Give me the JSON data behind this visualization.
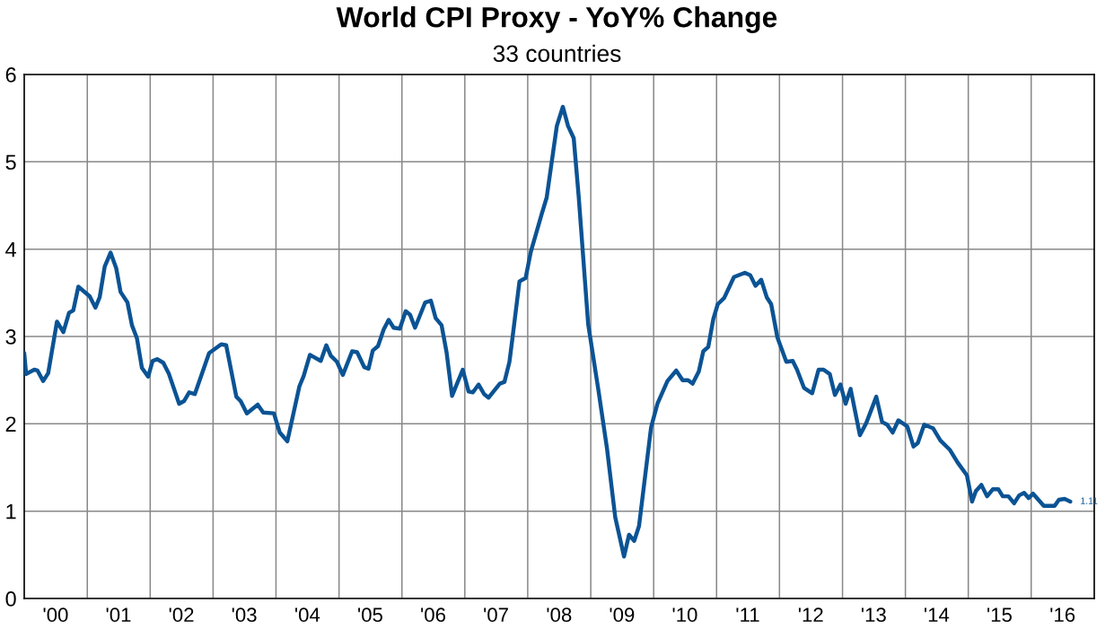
{
  "chart_data": {
    "type": "line",
    "title": "World CPI Proxy - YoY% Change",
    "subtitle": "33 countries",
    "series": [
      {
        "color": "#0b5394",
        "x": [
          "2000-01-01",
          "2000-01-12",
          "2000-02-28",
          "2000-03-18",
          "2000-04-20",
          "2000-05-19",
          "2000-07-09",
          "2000-08-15",
          "2000-09-17",
          "2000-10-12",
          "2000-11-10",
          "2001-01-15",
          "2001-02-17",
          "2001-03-14",
          "2001-04-12",
          "2001-05-16",
          "2001-06-18",
          "2001-07-13",
          "2001-08-22",
          "2001-09-17",
          "2001-10-16",
          "2001-11-14",
          "2001-12-20",
          "2002-01-15",
          "2002-02-10",
          "2002-03-18",
          "2002-04-20",
          "2002-06-18",
          "2002-07-16",
          "2002-08-15",
          "2002-09-17",
          "2002-12-09",
          "2003-02-17",
          "2003-03-18",
          "2003-05-16",
          "2003-06-10",
          "2003-07-16",
          "2003-09-17",
          "2003-10-19",
          "2003-12-20",
          "2004-01-23",
          "2004-03-07",
          "2004-05-16",
          "2004-06-10",
          "2004-07-16",
          "2004-08-03",
          "2004-09-17",
          "2004-10-19",
          "2004-11-14",
          "2004-12-20",
          "2005-01-23",
          "2005-03-18",
          "2005-04-16",
          "2005-05-27",
          "2005-06-21",
          "2005-07-16",
          "2005-08-15",
          "2005-09-17",
          "2005-10-16",
          "2005-11-14",
          "2005-12-20",
          "2006-01-23",
          "2006-02-17",
          "2006-03-18",
          "2006-05-16",
          "2006-06-18",
          "2006-07-16",
          "2006-08-19",
          "2006-09-17",
          "2006-10-19",
          "2006-12-20",
          "2007-01-23",
          "2007-02-17",
          "2007-03-22",
          "2007-04-23",
          "2007-05-19",
          "2007-07-23",
          "2007-08-19",
          "2007-09-17",
          "2007-10-05",
          "2007-11-14",
          "2007-12-20",
          "2008-01-19",
          "2008-03-22",
          "2008-04-20",
          "2008-06-18",
          "2008-07-23",
          "2008-08-22",
          "2008-09-24",
          "2008-10-23",
          "2008-12-17",
          "2009-02-14",
          "2009-04-05",
          "2009-05-23",
          "2009-07-13",
          "2009-08-11",
          "2009-09-10",
          "2009-10-08",
          "2009-12-17",
          "2010-01-23",
          "2010-03-22",
          "2010-05-12",
          "2010-06-18",
          "2010-07-20",
          "2010-08-15",
          "2010-09-20",
          "2010-10-16",
          "2010-11-14",
          "2010-12-13",
          "2011-01-08",
          "2011-02-14",
          "2011-04-12",
          "2011-06-14",
          "2011-07-16",
          "2011-08-15",
          "2011-09-17",
          "2011-10-19",
          "2011-11-14",
          "2011-12-20",
          "2012-02-10",
          "2012-03-18",
          "2012-04-12",
          "2012-05-23",
          "2012-07-09",
          "2012-08-15",
          "2012-09-13",
          "2012-10-19",
          "2012-11-18",
          "2012-12-20",
          "2013-01-19",
          "2013-02-17",
          "2013-04-12",
          "2013-05-19",
          "2013-07-16",
          "2013-08-19",
          "2013-09-17",
          "2013-10-19",
          "2013-11-21",
          "2014-01-12",
          "2014-02-17",
          "2014-03-14",
          "2014-04-20",
          "2014-06-10",
          "2014-07-23",
          "2014-09-17",
          "2014-10-30",
          "2014-12-24",
          "2015-01-23",
          "2015-02-14",
          "2015-03-18",
          "2015-04-20",
          "2015-05-23",
          "2015-06-25",
          "2015-07-20",
          "2015-08-22",
          "2015-09-24",
          "2015-10-23",
          "2015-11-21",
          "2015-12-17",
          "2016-01-12",
          "2016-03-14",
          "2016-05-16",
          "2016-06-10",
          "2016-07-13",
          "2016-08-15"
        ],
        "values": [
          2.81,
          2.57,
          2.62,
          2.61,
          2.49,
          2.58,
          3.17,
          3.05,
          3.27,
          3.3,
          3.57,
          3.46,
          3.33,
          3.45,
          3.8,
          3.96,
          3.78,
          3.51,
          3.39,
          3.13,
          2.98,
          2.64,
          2.54,
          2.72,
          2.74,
          2.7,
          2.57,
          2.23,
          2.26,
          2.36,
          2.34,
          2.81,
          2.91,
          2.9,
          2.31,
          2.26,
          2.12,
          2.22,
          2.13,
          2.12,
          1.9,
          1.8,
          2.43,
          2.55,
          2.79,
          2.77,
          2.72,
          2.9,
          2.78,
          2.71,
          2.56,
          2.83,
          2.82,
          2.65,
          2.63,
          2.84,
          2.89,
          3.08,
          3.19,
          3.1,
          3.09,
          3.29,
          3.25,
          3.1,
          3.39,
          3.41,
          3.21,
          3.13,
          2.82,
          2.32,
          2.62,
          2.37,
          2.36,
          2.45,
          2.34,
          2.3,
          2.46,
          2.48,
          2.71,
          2.99,
          3.63,
          3.67,
          3.97,
          4.4,
          4.59,
          5.41,
          5.63,
          5.41,
          5.27,
          4.6,
          3.14,
          2.39,
          1.72,
          0.93,
          0.48,
          0.73,
          0.66,
          0.83,
          1.96,
          2.23,
          2.49,
          2.61,
          2.5,
          2.5,
          2.46,
          2.6,
          2.83,
          2.88,
          3.2,
          3.37,
          3.44,
          3.68,
          3.73,
          3.7,
          3.58,
          3.65,
          3.45,
          3.37,
          2.99,
          2.71,
          2.72,
          2.62,
          2.41,
          2.35,
          2.62,
          2.62,
          2.57,
          2.33,
          2.45,
          2.23,
          2.4,
          1.87,
          2.01,
          2.31,
          2.02,
          1.99,
          1.9,
          2.04,
          1.97,
          1.74,
          1.78,
          1.99,
          1.95,
          1.81,
          1.7,
          1.56,
          1.41,
          1.11,
          1.23,
          1.3,
          1.17,
          1.25,
          1.25,
          1.17,
          1.17,
          1.09,
          1.18,
          1.21,
          1.15,
          1.2,
          1.06,
          1.06,
          1.13,
          1.14,
          1.11
        ],
        "value_labels": [
          null,
          null,
          null,
          null,
          null,
          null,
          null,
          null,
          null,
          null,
          null,
          null,
          null,
          null,
          null,
          null,
          null,
          null,
          null,
          null,
          null,
          null,
          null,
          null,
          null,
          null,
          null,
          null,
          null,
          null,
          null,
          null,
          null,
          null,
          null,
          null,
          null,
          null,
          null,
          null,
          null,
          null,
          null,
          null,
          null,
          null,
          null,
          null,
          null,
          null,
          null,
          null,
          null,
          null,
          null,
          null,
          null,
          null,
          null,
          null,
          null,
          null,
          null,
          null,
          null,
          null,
          null,
          null,
          null,
          null,
          null,
          null,
          null,
          null,
          null,
          null,
          null,
          null,
          null,
          null,
          null,
          null,
          null,
          null,
          null,
          null,
          null,
          null,
          null,
          null,
          null,
          null,
          null,
          null,
          null,
          null,
          null,
          null,
          null,
          null,
          null,
          null,
          null,
          null,
          null,
          null,
          null,
          null,
          null,
          null,
          null,
          null,
          null,
          null,
          null,
          null,
          null,
          null,
          null,
          null,
          null,
          null,
          null,
          null,
          null,
          null,
          null,
          null,
          null,
          null,
          null,
          null,
          null,
          null,
          null,
          null,
          null,
          null,
          null,
          null,
          null,
          null,
          null,
          null,
          null,
          null,
          null,
          null,
          null,
          null,
          null,
          null,
          null,
          null,
          null,
          null,
          null,
          null,
          null,
          null,
          null,
          null,
          null,
          null,
          "1.11"
        ]
      }
    ],
    "xlim": [
      "2000",
      "2017"
    ],
    "xticks": [
      {
        "value": "2001",
        "label": null
      },
      {
        "value": "2002",
        "label": null
      },
      {
        "value": "2003",
        "label": null
      },
      {
        "value": "2004",
        "label": null
      },
      {
        "value": "2005",
        "label": null
      },
      {
        "value": "2006",
        "label": null
      },
      {
        "value": "2007",
        "label": null
      },
      {
        "value": "2008",
        "label": null
      },
      {
        "value": "2009",
        "label": null
      },
      {
        "value": "2010",
        "label": null
      },
      {
        "value": "2011",
        "label": null
      },
      {
        "value": "2012",
        "label": null
      },
      {
        "value": "2013",
        "label": null
      },
      {
        "value": "2014",
        "label": null
      },
      {
        "value": "2015",
        "label": null
      },
      {
        "value": "2016",
        "label": null
      },
      {
        "value": "2000-07",
        "label": "'00"
      },
      {
        "value": "2001-07",
        "label": "'01"
      },
      {
        "value": "2002-07",
        "label": "'02"
      },
      {
        "value": "2003-07",
        "label": "'03"
      },
      {
        "value": "2004-07",
        "label": "'04"
      },
      {
        "value": "2005-07",
        "label": "'05"
      },
      {
        "value": "2006-07",
        "label": "'06"
      },
      {
        "value": "2007-07",
        "label": "'07"
      },
      {
        "value": "2008-07",
        "label": "'08"
      },
      {
        "value": "2009-07",
        "label": "'09"
      },
      {
        "value": "2010-07",
        "label": "'10"
      },
      {
        "value": "2011-07",
        "label": "'11"
      },
      {
        "value": "2012-07",
        "label": "'12"
      },
      {
        "value": "2013-07",
        "label": "'13"
      },
      {
        "value": "2014-07",
        "label": "'14"
      },
      {
        "value": "2015-07",
        "label": "'15"
      },
      {
        "value": "2016-07",
        "label": "'16"
      }
    ],
    "ylim": [
      0,
      6
    ],
    "yticks": [
      0,
      1,
      2,
      3,
      4,
      5,
      6
    ],
    "grid": true,
    "marker": "none",
    "line_style": "solid"
  }
}
